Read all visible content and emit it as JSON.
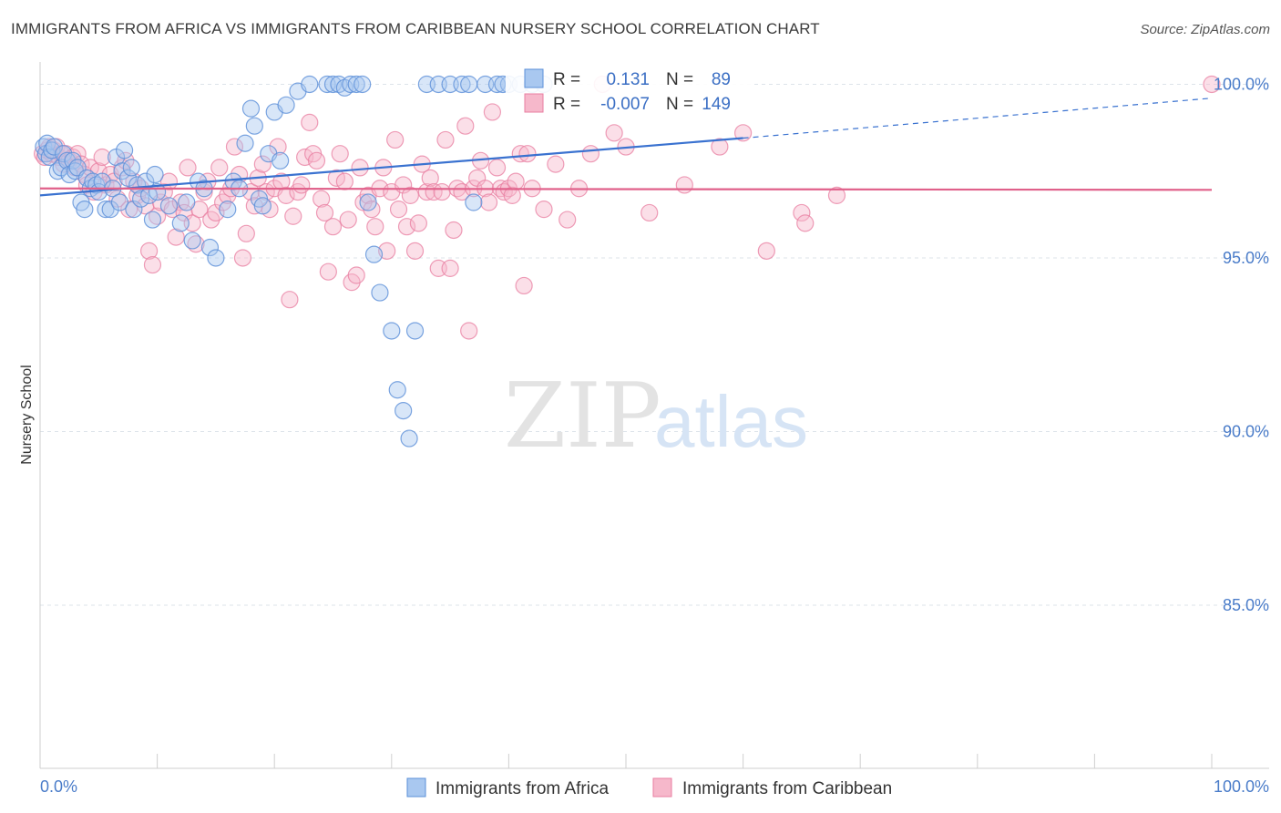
{
  "title": "IMMIGRANTS FROM AFRICA VS IMMIGRANTS FROM CARIBBEAN NURSERY SCHOOL CORRELATION CHART",
  "source": "Source: ZipAtlas.com",
  "watermark": {
    "zip": "ZIP",
    "atlas": "atlas"
  },
  "legend": {
    "r_label": "R =",
    "n_label": "N =",
    "africa": {
      "r": "0.131",
      "n": "89"
    },
    "caribbean": {
      "r": "-0.007",
      "n": "149"
    }
  },
  "colors": {
    "africa_fill": "#a9c8f0",
    "africa_stroke": "#5b8fd8",
    "africa_line": "#3a72d0",
    "caribbean_fill": "#f6b8cb",
    "caribbean_stroke": "#e87ea0",
    "caribbean_line": "#e0608a",
    "tick_text": "#4a7cc9",
    "grid": "#dde3ea"
  },
  "chart_data": {
    "type": "scatter",
    "title": "IMMIGRANTS FROM AFRICA VS IMMIGRANTS FROM CARIBBEAN NURSERY SCHOOL CORRELATION CHART",
    "xlabel": "",
    "ylabel": "Nursery School",
    "xlim": [
      0,
      100
    ],
    "ylim": [
      80.3,
      100.8
    ],
    "x_tick_labels": [
      "0.0%",
      "100.0%"
    ],
    "y_ticks": [
      {
        "value": 100,
        "label": "100.0%"
      },
      {
        "value": 95,
        "label": "95.0%"
      },
      {
        "value": 90,
        "label": "90.0%"
      },
      {
        "value": 85,
        "label": "85.0%"
      }
    ],
    "grid": true,
    "legend_position": "top-center",
    "series": [
      {
        "name": "Immigrants from Africa",
        "r": 0.131,
        "n": 89,
        "trend": {
          "x0": 0,
          "y0": 96.8,
          "x1": 60,
          "y1": 98.45,
          "dash_to_x": 100,
          "dash_to_y": 99.6
        },
        "points": [
          [
            0.3,
            98.2
          ],
          [
            0.5,
            98.0
          ],
          [
            0.6,
            98.3
          ],
          [
            0.8,
            97.9
          ],
          [
            1.0,
            98.1
          ],
          [
            1.2,
            98.2
          ],
          [
            1.5,
            97.5
          ],
          [
            1.8,
            97.6
          ],
          [
            2.0,
            98.0
          ],
          [
            2.3,
            97.8
          ],
          [
            2.5,
            97.4
          ],
          [
            2.8,
            97.8
          ],
          [
            3.0,
            97.5
          ],
          [
            3.2,
            97.6
          ],
          [
            3.5,
            96.6
          ],
          [
            3.8,
            96.4
          ],
          [
            4.0,
            97.3
          ],
          [
            4.3,
            97.0
          ],
          [
            4.5,
            97.2
          ],
          [
            4.8,
            97.1
          ],
          [
            5.0,
            96.9
          ],
          [
            5.3,
            97.2
          ],
          [
            5.6,
            96.4
          ],
          [
            6.0,
            96.4
          ],
          [
            6.2,
            97.0
          ],
          [
            6.5,
            97.9
          ],
          [
            6.8,
            96.6
          ],
          [
            7.0,
            97.5
          ],
          [
            7.2,
            98.1
          ],
          [
            7.5,
            97.3
          ],
          [
            7.8,
            97.6
          ],
          [
            8.0,
            96.4
          ],
          [
            8.3,
            97.1
          ],
          [
            8.6,
            96.7
          ],
          [
            9.0,
            97.2
          ],
          [
            9.3,
            96.8
          ],
          [
            9.6,
            96.1
          ],
          [
            9.8,
            97.4
          ],
          [
            10.0,
            96.9
          ],
          [
            11.0,
            96.5
          ],
          [
            12.0,
            96.0
          ],
          [
            12.5,
            96.6
          ],
          [
            13.0,
            95.5
          ],
          [
            13.5,
            97.2
          ],
          [
            14.0,
            97.0
          ],
          [
            14.5,
            95.3
          ],
          [
            15.0,
            95.0
          ],
          [
            16.0,
            96.4
          ],
          [
            16.5,
            97.2
          ],
          [
            17.0,
            97.0
          ],
          [
            17.5,
            98.3
          ],
          [
            18.0,
            99.3
          ],
          [
            18.3,
            98.8
          ],
          [
            18.7,
            96.7
          ],
          [
            19.0,
            96.5
          ],
          [
            19.5,
            98.0
          ],
          [
            20.0,
            99.2
          ],
          [
            20.5,
            97.8
          ],
          [
            21.0,
            99.4
          ],
          [
            22.0,
            99.8
          ],
          [
            23.0,
            100.0
          ],
          [
            24.5,
            100.0
          ],
          [
            25.0,
            100.0
          ],
          [
            25.5,
            100.0
          ],
          [
            26.0,
            99.9
          ],
          [
            26.5,
            100.0
          ],
          [
            27.0,
            100.0
          ],
          [
            27.5,
            100.0
          ],
          [
            28.0,
            96.6
          ],
          [
            28.5,
            95.1
          ],
          [
            29.0,
            94.0
          ],
          [
            30.0,
            92.9
          ],
          [
            30.5,
            91.2
          ],
          [
            31.0,
            90.6
          ],
          [
            31.5,
            89.8
          ],
          [
            32.0,
            92.9
          ],
          [
            33.0,
            100.0
          ],
          [
            34.0,
            100.0
          ],
          [
            35.0,
            100.0
          ],
          [
            36.0,
            100.0
          ],
          [
            36.6,
            100.0
          ],
          [
            37.0,
            96.6
          ],
          [
            38.0,
            100.0
          ],
          [
            39.0,
            100.0
          ],
          [
            40.0,
            100.0
          ],
          [
            41.0,
            100.0
          ],
          [
            42.0,
            100.0
          ],
          [
            43.0,
            100.0
          ],
          [
            39.5,
            100.0
          ]
        ]
      },
      {
        "name": "Immigrants from Caribbean",
        "r": -0.007,
        "n": 149,
        "trend": {
          "x0": 0,
          "y0": 97.0,
          "x1": 100,
          "y1": 96.96
        },
        "points": [
          [
            0.2,
            98.0
          ],
          [
            0.4,
            97.9
          ],
          [
            0.6,
            98.1
          ],
          [
            0.8,
            98.2
          ],
          [
            1.0,
            98.0
          ],
          [
            1.2,
            98.1
          ],
          [
            1.4,
            98.2
          ],
          [
            1.6,
            97.9
          ],
          [
            1.8,
            98.0
          ],
          [
            2.0,
            97.7
          ],
          [
            2.2,
            98.0
          ],
          [
            2.5,
            97.8
          ],
          [
            2.8,
            97.9
          ],
          [
            3.0,
            97.6
          ],
          [
            3.2,
            98.0
          ],
          [
            3.5,
            97.7
          ],
          [
            3.8,
            97.4
          ],
          [
            4.0,
            97.1
          ],
          [
            4.3,
            97.6
          ],
          [
            4.6,
            96.9
          ],
          [
            5.0,
            97.5
          ],
          [
            5.3,
            97.9
          ],
          [
            5.6,
            97.1
          ],
          [
            6.0,
            97.4
          ],
          [
            6.3,
            97.2
          ],
          [
            6.6,
            96.7
          ],
          [
            7.0,
            97.6
          ],
          [
            7.3,
            97.8
          ],
          [
            7.6,
            96.4
          ],
          [
            8.0,
            97.2
          ],
          [
            8.3,
            96.8
          ],
          [
            8.6,
            97.0
          ],
          [
            9.0,
            96.5
          ],
          [
            9.3,
            95.2
          ],
          [
            9.6,
            94.8
          ],
          [
            10.0,
            96.2
          ],
          [
            10.3,
            96.6
          ],
          [
            10.6,
            96.9
          ],
          [
            11.0,
            97.2
          ],
          [
            11.3,
            96.4
          ],
          [
            11.6,
            95.6
          ],
          [
            12.0,
            96.6
          ],
          [
            12.3,
            96.3
          ],
          [
            12.6,
            97.6
          ],
          [
            13.0,
            96.0
          ],
          [
            13.3,
            95.4
          ],
          [
            13.6,
            96.4
          ],
          [
            14.0,
            96.9
          ],
          [
            14.3,
            97.2
          ],
          [
            14.6,
            96.1
          ],
          [
            15.0,
            96.3
          ],
          [
            15.3,
            97.6
          ],
          [
            15.6,
            96.6
          ],
          [
            16.0,
            96.8
          ],
          [
            16.3,
            97.0
          ],
          [
            16.6,
            98.2
          ],
          [
            17.0,
            97.4
          ],
          [
            17.3,
            95.0
          ],
          [
            17.6,
            95.7
          ],
          [
            18.0,
            96.9
          ],
          [
            18.3,
            96.5
          ],
          [
            18.6,
            97.3
          ],
          [
            19.0,
            97.7
          ],
          [
            19.3,
            96.9
          ],
          [
            19.6,
            96.4
          ],
          [
            20.0,
            97.0
          ],
          [
            20.3,
            98.2
          ],
          [
            20.6,
            97.2
          ],
          [
            21.0,
            96.8
          ],
          [
            21.3,
            93.8
          ],
          [
            21.6,
            96.2
          ],
          [
            22.0,
            96.9
          ],
          [
            22.3,
            97.1
          ],
          [
            22.6,
            97.9
          ],
          [
            23.0,
            98.9
          ],
          [
            23.3,
            98.0
          ],
          [
            23.6,
            97.8
          ],
          [
            24.0,
            96.7
          ],
          [
            24.3,
            96.3
          ],
          [
            24.6,
            94.6
          ],
          [
            25.0,
            95.9
          ],
          [
            25.3,
            97.3
          ],
          [
            25.6,
            98.0
          ],
          [
            26.0,
            97.2
          ],
          [
            26.3,
            96.1
          ],
          [
            26.6,
            94.3
          ],
          [
            27.0,
            94.5
          ],
          [
            27.3,
            97.6
          ],
          [
            27.6,
            96.6
          ],
          [
            28.0,
            96.8
          ],
          [
            28.3,
            96.4
          ],
          [
            28.6,
            95.9
          ],
          [
            29.0,
            97.0
          ],
          [
            29.3,
            97.6
          ],
          [
            29.6,
            95.2
          ],
          [
            30.0,
            96.9
          ],
          [
            30.3,
            98.4
          ],
          [
            30.6,
            96.4
          ],
          [
            31.0,
            97.1
          ],
          [
            31.3,
            95.9
          ],
          [
            31.6,
            96.8
          ],
          [
            32.0,
            95.2
          ],
          [
            32.3,
            96.0
          ],
          [
            32.6,
            97.7
          ],
          [
            33.0,
            96.9
          ],
          [
            33.3,
            97.3
          ],
          [
            33.6,
            96.9
          ],
          [
            34.0,
            94.7
          ],
          [
            34.3,
            96.9
          ],
          [
            34.6,
            98.4
          ],
          [
            35.0,
            94.7
          ],
          [
            35.3,
            95.8
          ],
          [
            35.6,
            97.0
          ],
          [
            36.0,
            96.9
          ],
          [
            36.3,
            98.8
          ],
          [
            36.6,
            92.9
          ],
          [
            37.0,
            97.0
          ],
          [
            37.3,
            97.3
          ],
          [
            37.6,
            97.8
          ],
          [
            38.0,
            97.0
          ],
          [
            38.3,
            96.6
          ],
          [
            38.6,
            99.2
          ],
          [
            39.0,
            97.6
          ],
          [
            39.3,
            97.0
          ],
          [
            39.6,
            96.9
          ],
          [
            40.0,
            97.0
          ],
          [
            40.3,
            96.8
          ],
          [
            40.6,
            97.2
          ],
          [
            41.0,
            98.0
          ],
          [
            41.3,
            94.2
          ],
          [
            41.6,
            98.0
          ],
          [
            42.0,
            97.0
          ],
          [
            43.0,
            96.4
          ],
          [
            44.0,
            97.7
          ],
          [
            45.0,
            96.1
          ],
          [
            46.0,
            97.0
          ],
          [
            47.0,
            98.0
          ],
          [
            48.0,
            100.0
          ],
          [
            49.0,
            98.6
          ],
          [
            50.0,
            98.2
          ],
          [
            52.0,
            96.3
          ],
          [
            55.0,
            97.1
          ],
          [
            58.0,
            98.2
          ],
          [
            60.0,
            98.6
          ],
          [
            62.0,
            95.2
          ],
          [
            65.0,
            96.3
          ],
          [
            65.3,
            96.0
          ],
          [
            68.0,
            96.8
          ],
          [
            100,
            100.0
          ]
        ]
      }
    ]
  },
  "bottom_legend": [
    "Immigrants from Africa",
    "Immigrants from Caribbean"
  ]
}
